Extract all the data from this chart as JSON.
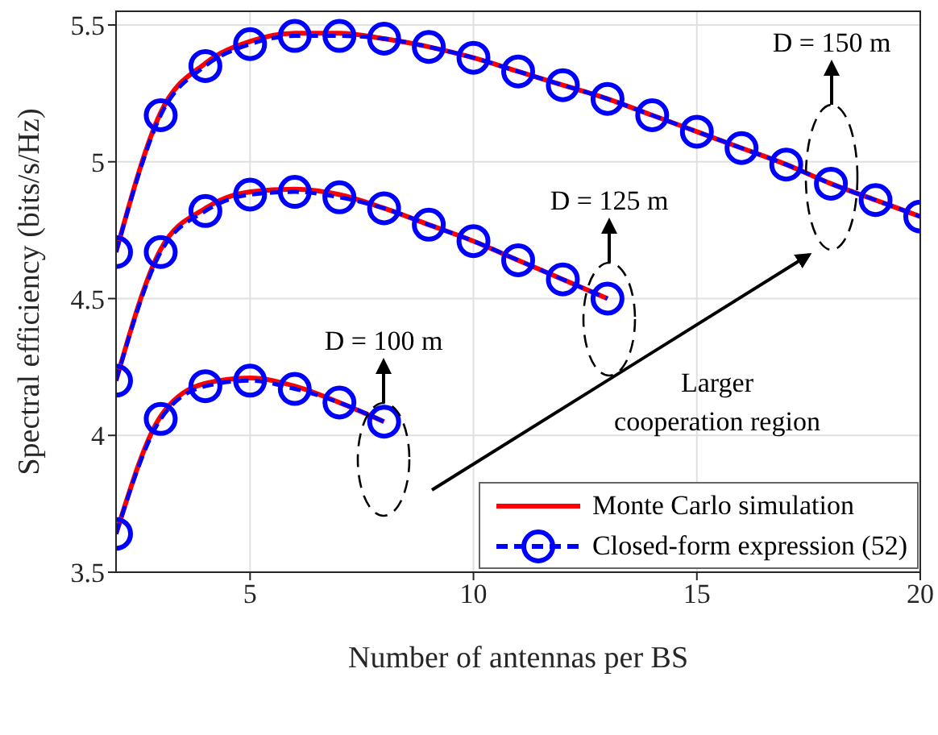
{
  "chart_data": {
    "type": "line",
    "xlabel": "Number of antennas per BS",
    "ylabel": "Spectral efficiency (bits/s/Hz)",
    "xlim": [
      2,
      20
    ],
    "xticks": [
      5,
      10,
      15,
      20
    ],
    "ylim": [
      3.5,
      5.55
    ],
    "yticks": [
      3.5,
      4,
      4.5,
      5,
      5.5
    ],
    "grid": true,
    "legend": "bottom right",
    "series": [
      {
        "name": "Monte Carlo simulation",
        "color": "#ff0000",
        "marker": "none",
        "line_style": "solid",
        "x": [
          2,
          3,
          4,
          5,
          6,
          7,
          8,
          9,
          10,
          11,
          12,
          13,
          14,
          15,
          16,
          17,
          18,
          19,
          20
        ],
        "values": [
          4.67,
          5.18,
          5.36,
          5.44,
          5.47,
          5.47,
          5.45,
          5.42,
          5.38,
          5.33,
          5.28,
          5.23,
          5.17,
          5.11,
          5.05,
          4.99,
          4.92,
          4.86,
          4.8
        ]
      },
      {
        "color": "#ff0000",
        "marker": "none",
        "line_style": "solid",
        "x": [
          2,
          3,
          4,
          5,
          6,
          7,
          8,
          9,
          10,
          11,
          12,
          13
        ],
        "values": [
          4.2,
          4.68,
          4.83,
          4.89,
          4.9,
          4.88,
          4.83,
          4.77,
          4.71,
          4.64,
          4.57,
          4.5
        ]
      },
      {
        "color": "#ff0000",
        "marker": "none",
        "line_style": "solid",
        "x": [
          2,
          3,
          4,
          5,
          6,
          7,
          8
        ],
        "values": [
          3.64,
          4.07,
          4.19,
          4.21,
          4.18,
          4.12,
          4.05
        ]
      },
      {
        "name": "Closed-form expression (52)",
        "color": "#0000ff",
        "marker": "circle",
        "line_style": "dashed",
        "x": [
          2,
          3,
          4,
          5,
          6,
          7,
          8,
          9,
          10,
          11,
          12,
          13,
          14,
          15,
          16,
          17,
          18,
          19,
          20
        ],
        "values": [
          4.67,
          5.17,
          5.35,
          5.43,
          5.46,
          5.46,
          5.45,
          5.42,
          5.38,
          5.33,
          5.28,
          5.23,
          5.17,
          5.11,
          5.05,
          4.99,
          4.92,
          4.86,
          4.8
        ]
      },
      {
        "color": "#0000ff",
        "marker": "circle",
        "line_style": "dashed",
        "x": [
          2,
          3,
          4,
          5,
          6,
          7,
          8,
          9,
          10,
          11,
          12,
          13
        ],
        "values": [
          4.2,
          4.67,
          4.82,
          4.88,
          4.89,
          4.87,
          4.83,
          4.77,
          4.71,
          4.64,
          4.57,
          4.5
        ]
      },
      {
        "color": "#0000ff",
        "marker": "circle",
        "line_style": "dashed",
        "x": [
          2,
          3,
          4,
          5,
          6,
          7,
          8
        ],
        "values": [
          3.64,
          4.06,
          4.18,
          4.2,
          4.17,
          4.12,
          4.05
        ]
      }
    ],
    "annotations": [
      "D = 100 m",
      "D = 125 m",
      "D = 150 m",
      "Larger cooperation region"
    ]
  }
}
